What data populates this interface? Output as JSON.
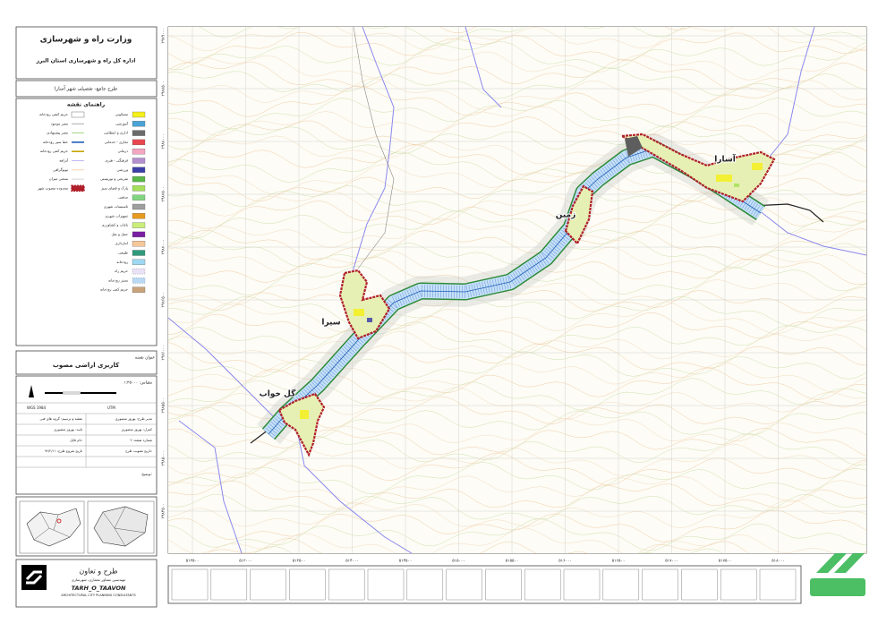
{
  "header": {
    "title": "وزارت راه و شهرسازی",
    "subtitle": "اداره کل راه و شهرسازی استان البرز",
    "project": "طرح جامع- تفصیلی شهر آسارا"
  },
  "legend": {
    "title": "راهنمای نقشه",
    "items": [
      {
        "label": "مسکونی",
        "color": "#f5ef1c"
      },
      {
        "label": "آموزشی",
        "color": "#4aa3d6"
      },
      {
        "label": "اداری و انتظامی",
        "color": "#6b6b6b"
      },
      {
        "label": "تجاری - خدماتی",
        "color": "#e8474f"
      },
      {
        "label": "درمانی",
        "color": "#f4a6c0"
      },
      {
        "label": "فرهنگی - هنری",
        "color": "#b48fd0"
      },
      {
        "label": "ورزشی",
        "color": "#3b3fa8"
      },
      {
        "label": "تفریحی و توریستی",
        "color": "#59b847"
      },
      {
        "label": "پارک و فضای سبز",
        "color": "#a6e05a"
      },
      {
        "label": "مذهبی",
        "color": "#7fd67f"
      },
      {
        "label": "تاسیسات شهری",
        "color": "#9e9e9e"
      },
      {
        "label": "تجهیزات شهری",
        "color": "#e89a1f"
      },
      {
        "label": "باغات و کشاورزی",
        "color": "#c9ef7a"
      },
      {
        "label": "حمل و نقل",
        "color": "#7a1fa2"
      },
      {
        "label": "انبارداری",
        "color": "#f6c79a"
      },
      {
        "label": "طبیعی",
        "color": "#2f9a7a"
      },
      {
        "label": "رودخانه",
        "color": "#9ed8f2"
      },
      {
        "label": "حریم راه",
        "color": "#e9e2f7"
      },
      {
        "label": "بستر رودخانه",
        "color": "#b9d9f5"
      },
      {
        "label": "حریم کمی رودخانه",
        "color": "#c9a37a"
      }
    ],
    "lines": [
      {
        "label": "حریم کیفی رودخانه",
        "color": "#ffffff"
      },
      {
        "label": "معبر موجود",
        "color": "#9a9a9a"
      },
      {
        "label": "معبر پیشنهادی",
        "color": "#8fcf6a"
      },
      {
        "label": "خط سیر رودخانه",
        "color": "#1f5fb8"
      },
      {
        "label": "حریم کمی رودخانه",
        "color": "#c7a400"
      },
      {
        "label": "آبراهه",
        "color": "#b0a8f0"
      },
      {
        "label": "توپوگرافی",
        "color": "#f2c9a0"
      },
      {
        "label": "منحنی میزان",
        "color": "#c9c9c9"
      },
      {
        "label": "محدوده مصوب شهر",
        "color": "#b0202a"
      }
    ]
  },
  "map_title": {
    "caption": "عنوان نقشه",
    "title": "کاربری اراضی مصوب"
  },
  "info": {
    "scale": "مقیاس: ۱:۲۵۰۰۰",
    "datum": "WGS 1984",
    "projection": "UTM",
    "fields": [
      "مدیر طرح: بهروز منصوری",
      "نقشه و ترسیم: گروه های فنی",
      "کنترل: بهروز منصوری",
      "تایید: بهروز منصوری",
      "شماره نقشه: ۲",
      "نام فایل:",
      "تاریخ تصویب طرح:",
      "تاریخ شروع طرح: ۹۶/۲/۱۱"
    ],
    "notes": "توضیح:"
  },
  "map": {
    "places": [
      "آسارا",
      "زمین",
      "سیرا",
      "گل خواب"
    ],
    "x_labels": [
      "۵۱۲۵۰۰",
      "۵۱۳۰۰۰",
      "۵۱۳۵۰۰",
      "۵۱۴۰۰۰",
      "۵۱۴۵۰۰",
      "۵۱۵۰۰۰",
      "۵۱۵۵۰۰",
      "۵۱۶۰۰۰",
      "۵۱۶۵۰۰",
      "۵۱۷۰۰۰",
      "۵۱۷۵۰۰",
      "۵۱۸۰۰۰"
    ],
    "y_labels": [
      "۳۹۸۹۰۰۰",
      "۳۹۸۸۵۰۰",
      "۳۹۸۸۰۰۰",
      "۳۹۸۷۵۰۰",
      "۳۹۸۷۰۰۰",
      "۳۹۸۶۵۰۰",
      "۳۹۸۶۰۰۰",
      "۳۹۸۵۵۰۰",
      "۳۹۸۵۰۰۰",
      "۳۹۸۴۵۰۰"
    ]
  },
  "company": {
    "name": "طرح و تعاون",
    "subtitle": "مهندسین مشاور معماری، شهرسازی",
    "latin": "TARH_O_TAAVON",
    "latin_sub": "ARCHITECTURAL CITY PLANNING CONSULTANTS"
  }
}
